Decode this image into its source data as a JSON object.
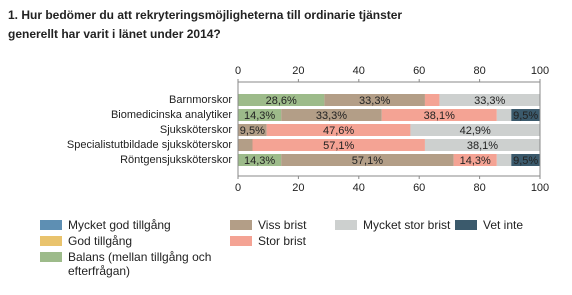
{
  "chart_data": {
    "type": "stacked-bar-horizontal",
    "title": "1. Hur bedömer du att rekryteringsmöjligheterna till ordinarie tjänster generellt har varit i länet under 2014?",
    "categories": [
      "Barnmorskor",
      "Biomedicinska analytiker",
      "Sjuksköterskor",
      "Specialistutbildade sjuksköterskor",
      "Röntgensjuksköterskor"
    ],
    "series": [
      {
        "name": "Mycket god tillgång",
        "color": "#5e8fb3",
        "values": [
          0,
          0,
          0,
          0,
          0
        ],
        "value_labels": [
          null,
          null,
          null,
          null,
          null
        ]
      },
      {
        "name": "God tillgång",
        "color": "#e9c36d",
        "values": [
          0,
          0,
          0,
          0,
          0
        ],
        "value_labels": [
          null,
          null,
          null,
          null,
          null
        ]
      },
      {
        "name": "Balans (mellan tillgång och efterfrågan)",
        "color": "#9dbb8a",
        "values": [
          28.6,
          14.3,
          0,
          0,
          14.3
        ],
        "value_labels": [
          "28,6%",
          "14,3%",
          null,
          null,
          "14,3%"
        ]
      },
      {
        "name": "Viss brist",
        "color": "#b39e87",
        "values": [
          33.3,
          33.3,
          9.5,
          4.8,
          57.1
        ],
        "value_labels": [
          "33,3%",
          "33,3%",
          "9,5%",
          null,
          "57,1%"
        ]
      },
      {
        "name": "Stor brist",
        "color": "#f4a394",
        "values": [
          4.8,
          38.1,
          47.6,
          57.1,
          14.3
        ],
        "value_labels": [
          null,
          "38,1%",
          "47,6%",
          "57,1%",
          "14,3%"
        ]
      },
      {
        "name": "Mycket stor brist",
        "color": "#cdd0cf",
        "values": [
          33.3,
          4.8,
          42.9,
          38.1,
          4.8
        ],
        "value_labels": [
          "33,3%",
          null,
          "42,9%",
          "38,1%",
          null
        ]
      },
      {
        "name": "Vet inte",
        "color": "#3b5a6c",
        "values": [
          0,
          9.5,
          0,
          0,
          9.5
        ],
        "value_labels": [
          null,
          "9,5%",
          null,
          null,
          "9,5%"
        ]
      }
    ],
    "xlim": [
      0,
      100
    ],
    "xticks": [
      0,
      20,
      40,
      60,
      80,
      100
    ]
  }
}
